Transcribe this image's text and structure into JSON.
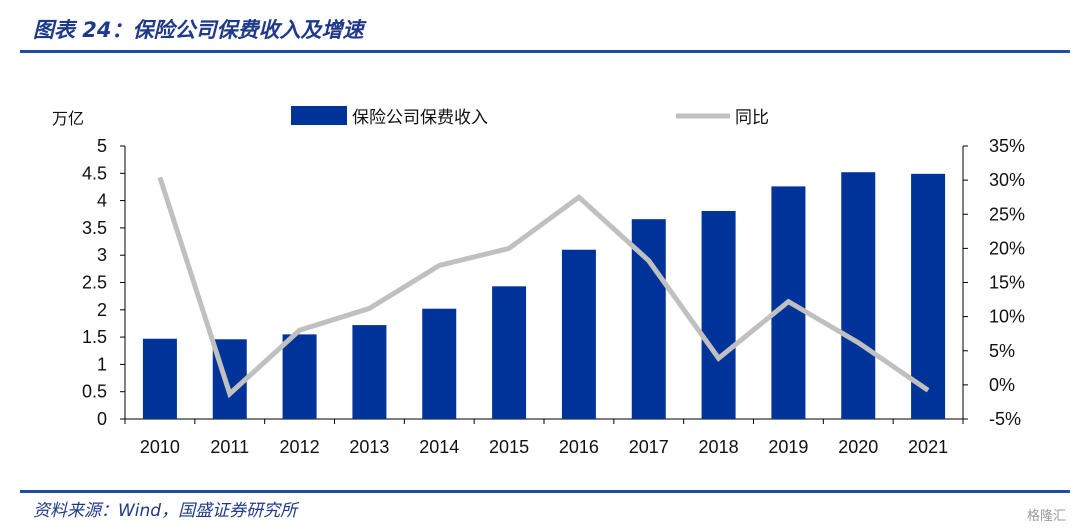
{
  "header": {
    "title": "图表 24：保险公司保费收入及增速"
  },
  "footer": {
    "source": "资料来源：Wind，国盛证券研究所",
    "watermark": "格隆汇"
  },
  "colors": {
    "bar": "#003399",
    "line": "#c0c0c0",
    "rule": "#1f4fa0",
    "title": "#1f3a8a"
  },
  "chart_data": {
    "type": "bar",
    "title": "",
    "categories": [
      "2010",
      "2011",
      "2012",
      "2013",
      "2014",
      "2015",
      "2016",
      "2017",
      "2018",
      "2019",
      "2020",
      "2021"
    ],
    "series": [
      {
        "name": "保险公司保费收入",
        "type": "bar",
        "axis": "left",
        "values": [
          1.47,
          1.46,
          1.55,
          1.72,
          2.02,
          2.43,
          3.1,
          3.66,
          3.81,
          4.26,
          4.52,
          4.49
        ]
      },
      {
        "name": "同比",
        "type": "line",
        "axis": "right",
        "values": [
          30.4,
          -1.3,
          8.0,
          11.2,
          17.5,
          20.0,
          27.5,
          18.2,
          3.9,
          12.2,
          6.2,
          -0.8
        ]
      }
    ],
    "y_left": {
      "unit": "万亿",
      "min": 0,
      "max": 5,
      "ticks": [
        "0",
        "0.5",
        "1",
        "1.5",
        "2",
        "2.5",
        "3",
        "3.5",
        "4",
        "4.5",
        "5"
      ]
    },
    "y_right": {
      "min": -5,
      "max": 35,
      "ticks": [
        "-5%",
        "0%",
        "5%",
        "10%",
        "15%",
        "20%",
        "25%",
        "30%",
        "35%"
      ]
    },
    "legend": {
      "placement": "top"
    },
    "grid": false
  }
}
